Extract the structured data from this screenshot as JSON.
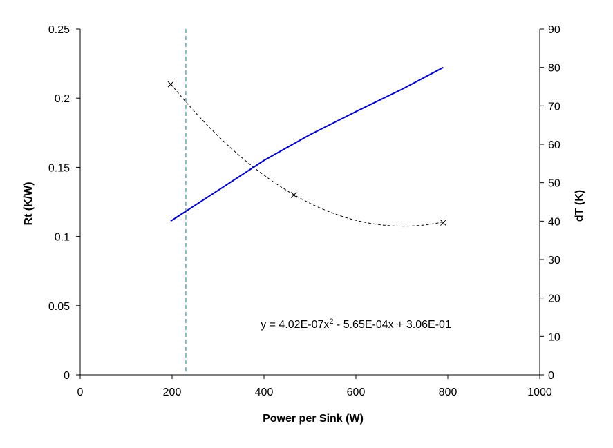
{
  "chart_data": {
    "type": "line",
    "xlabel": "Power per Sink   (W)",
    "ylabel_left": "Rt   (K/W)",
    "ylabel_right": "dT   (K)",
    "xlim": [
      0,
      1000
    ],
    "ylim_left": [
      0,
      0.25
    ],
    "ylim_right": [
      0,
      90
    ],
    "x_ticks": [
      "0",
      "200",
      "400",
      "600",
      "800",
      "1000"
    ],
    "y_left_ticks": [
      "0",
      "0.05",
      "0.1",
      "0.15",
      "0.2",
      "0.25"
    ],
    "y_right_ticks": [
      "0",
      "10",
      "20",
      "30",
      "40",
      "50",
      "60",
      "70",
      "80",
      "90"
    ],
    "grid": false,
    "legend": "none",
    "series": [
      {
        "axis": "left",
        "style": "markers",
        "marker": "x",
        "color": "#000000",
        "x": [
          197,
          465,
          790
        ],
        "y": [
          0.21,
          0.13,
          0.11
        ]
      },
      {
        "axis": "left",
        "style": "dashed-trendline",
        "color": "#000000",
        "fit": {
          "a": 4.02e-07,
          "b": -0.000565,
          "c": 0.306
        },
        "x_range": [
          197,
          790
        ]
      },
      {
        "axis": "right",
        "style": "line",
        "color": "#0000CC",
        "x": [
          197,
          300,
          400,
          500,
          600,
          700,
          790
        ],
        "y": [
          40,
          48,
          55.8,
          62.5,
          68.5,
          74.3,
          80
        ]
      }
    ],
    "vline": {
      "x": 230,
      "color": "#339999"
    },
    "annotation": {
      "prefix": "y = 4.02E-07x",
      "sup": "2",
      "suffix": " - 5.65E-04x + 3.06E-01",
      "x": 600,
      "y_left": 0.034
    }
  }
}
